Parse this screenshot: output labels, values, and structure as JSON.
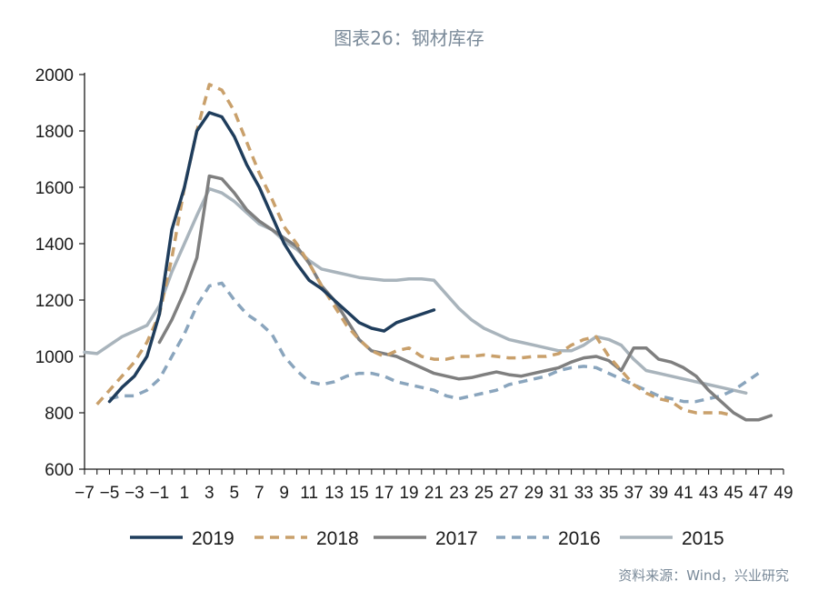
{
  "title": "图表26：钢材库存",
  "source": "资料来源：Wind，兴业研究",
  "chart_data": {
    "type": "line",
    "title": "图表26：钢材库存",
    "xlabel": "",
    "ylabel": "",
    "xlim": [
      -7,
      49
    ],
    "ylim": [
      600,
      2000
    ],
    "x_ticks": [
      -7,
      -5,
      -3,
      -1,
      1,
      3,
      5,
      7,
      9,
      11,
      13,
      15,
      17,
      19,
      21,
      23,
      25,
      27,
      29,
      31,
      33,
      35,
      37,
      39,
      41,
      43,
      45,
      47,
      49
    ],
    "x_tick_labels": [
      "−7",
      "−5",
      "−3",
      "−1",
      "1",
      "3",
      "5",
      "7",
      "9",
      "11",
      "13",
      "15",
      "17",
      "19",
      "21",
      "23",
      "25",
      "27",
      "29",
      "31",
      "33",
      "35",
      "37",
      "39",
      "41",
      "43",
      "45",
      "47",
      "49"
    ],
    "y_ticks": [
      600,
      800,
      1000,
      1200,
      1400,
      1600,
      1800,
      2000
    ],
    "y_tick_labels": [
      "600",
      "800",
      "1000",
      "1200",
      "1400",
      "1600",
      "1800",
      "2000"
    ],
    "grid": false,
    "legend_position": "bottom",
    "series": [
      {
        "name": "2019",
        "color": "#1f3d5c",
        "dash": "solid",
        "x": [
          -5,
          -4,
          -3,
          -2,
          -1,
          0,
          1,
          2,
          3,
          4,
          5,
          6,
          7,
          8,
          9,
          10,
          11,
          12,
          13,
          14,
          15,
          16,
          17,
          18,
          19,
          20,
          21
        ],
        "y": [
          840,
          890,
          930,
          1000,
          1150,
          1450,
          1600,
          1800,
          1865,
          1850,
          1780,
          1680,
          1600,
          1500,
          1400,
          1330,
          1270,
          1240,
          1200,
          1160,
          1120,
          1100,
          1090,
          1120,
          1135,
          1150,
          1165
        ]
      },
      {
        "name": "2018",
        "color": "#c9a06b",
        "dash": "dashed",
        "x": [
          -6,
          -5,
          -4,
          -3,
          -2,
          -1,
          0,
          1,
          2,
          3,
          4,
          5,
          6,
          7,
          8,
          9,
          10,
          11,
          12,
          13,
          14,
          15,
          16,
          17,
          18,
          19,
          20,
          21,
          22,
          23,
          24,
          25,
          26,
          27,
          28,
          29,
          30,
          31,
          32,
          33,
          34,
          35,
          36,
          37,
          38,
          39,
          40,
          41,
          42,
          43,
          44,
          45
        ],
        "y": [
          830,
          880,
          930,
          980,
          1050,
          1150,
          1350,
          1600,
          1800,
          1965,
          1945,
          1870,
          1760,
          1650,
          1560,
          1460,
          1400,
          1330,
          1250,
          1180,
          1110,
          1060,
          1020,
          1000,
          1020,
          1030,
          1000,
          990,
          990,
          1000,
          1000,
          1005,
          1000,
          995,
          995,
          1000,
          1000,
          1010,
          1040,
          1060,
          1070,
          1000,
          950,
          900,
          870,
          850,
          840,
          810,
          800,
          800,
          800,
          790
        ]
      },
      {
        "name": "2017",
        "color": "#7f7f7f",
        "dash": "solid",
        "x": [
          -1,
          0,
          1,
          2,
          3,
          4,
          5,
          6,
          7,
          8,
          9,
          10,
          11,
          12,
          13,
          14,
          15,
          16,
          17,
          18,
          19,
          20,
          21,
          22,
          23,
          24,
          25,
          26,
          27,
          28,
          29,
          30,
          31,
          32,
          33,
          34,
          35,
          36,
          37,
          38,
          39,
          40,
          41,
          42,
          43,
          44,
          45,
          46,
          47,
          48
        ],
        "y": [
          1050,
          1130,
          1230,
          1350,
          1640,
          1630,
          1580,
          1520,
          1480,
          1450,
          1420,
          1390,
          1330,
          1250,
          1200,
          1130,
          1060,
          1020,
          1010,
          1000,
          980,
          960,
          940,
          930,
          920,
          925,
          935,
          945,
          935,
          930,
          940,
          950,
          960,
          980,
          995,
          1000,
          985,
          950,
          1030,
          1030,
          990,
          980,
          960,
          930,
          880,
          840,
          800,
          775,
          775,
          790
        ]
      },
      {
        "name": "2016",
        "color": "#8aa5bd",
        "dash": "dashed",
        "x": [
          -5,
          -4,
          -3,
          -2,
          -1,
          0,
          1,
          2,
          3,
          4,
          5,
          6,
          7,
          8,
          9,
          10,
          11,
          12,
          13,
          14,
          15,
          16,
          17,
          18,
          19,
          20,
          21,
          22,
          23,
          24,
          25,
          26,
          27,
          28,
          29,
          30,
          31,
          32,
          33,
          34,
          35,
          36,
          37,
          38,
          39,
          40,
          41,
          42,
          43,
          44,
          45,
          46,
          47
        ],
        "y": [
          850,
          860,
          860,
          880,
          920,
          1000,
          1080,
          1180,
          1250,
          1260,
          1200,
          1150,
          1120,
          1080,
          1000,
          950,
          910,
          900,
          910,
          930,
          940,
          940,
          930,
          910,
          900,
          890,
          880,
          860,
          850,
          860,
          870,
          880,
          900,
          910,
          920,
          930,
          950,
          960,
          965,
          960,
          940,
          920,
          900,
          880,
          860,
          850,
          840,
          840,
          850,
          860,
          880,
          910,
          940
        ]
      },
      {
        "name": "2015",
        "color": "#a9b4bc",
        "dash": "solid",
        "x": [
          -7,
          -6,
          -5,
          -4,
          -3,
          -2,
          -1,
          0,
          1,
          2,
          3,
          4,
          5,
          6,
          7,
          8,
          9,
          10,
          11,
          12,
          13,
          14,
          15,
          16,
          17,
          18,
          19,
          20,
          21,
          22,
          23,
          24,
          25,
          26,
          27,
          28,
          29,
          30,
          31,
          32,
          33,
          34,
          35,
          36,
          37,
          38,
          39,
          40,
          41,
          42,
          43,
          44,
          45,
          46
        ],
        "y": [
          1015,
          1010,
          1040,
          1070,
          1090,
          1110,
          1180,
          1300,
          1400,
          1500,
          1595,
          1580,
          1550,
          1510,
          1470,
          1450,
          1410,
          1380,
          1340,
          1310,
          1300,
          1290,
          1280,
          1275,
          1270,
          1270,
          1275,
          1275,
          1270,
          1220,
          1170,
          1130,
          1100,
          1080,
          1060,
          1050,
          1040,
          1030,
          1020,
          1020,
          1040,
          1070,
          1060,
          1040,
          990,
          950,
          940,
          930,
          920,
          910,
          900,
          890,
          880,
          870
        ]
      }
    ]
  }
}
